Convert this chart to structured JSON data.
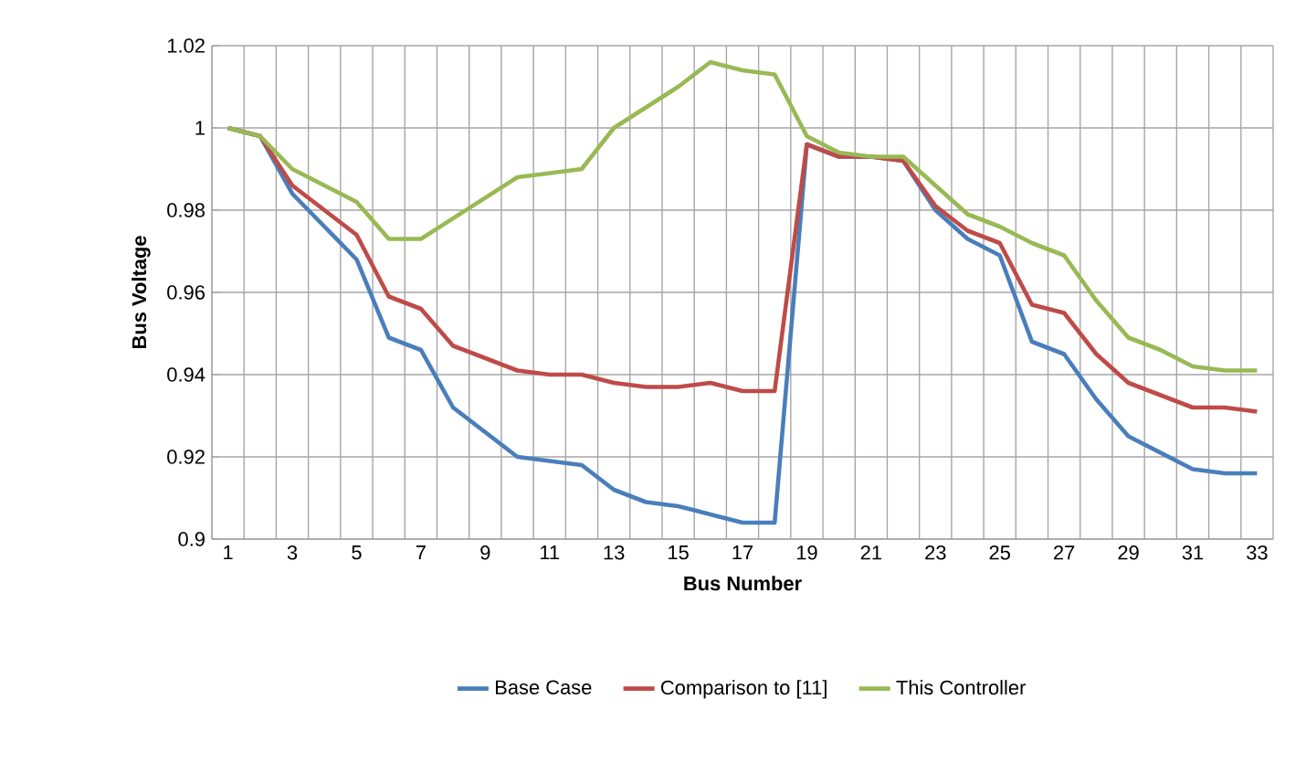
{
  "chart_data": {
    "type": "line",
    "xlabel": "Bus Number",
    "ylabel": "Bus Voltage",
    "categories": [
      "1",
      null,
      "3",
      null,
      "5",
      null,
      "7",
      null,
      "9",
      null,
      "11",
      null,
      "13",
      null,
      "15",
      null,
      "17",
      null,
      "19",
      null,
      "21",
      null,
      "23",
      null,
      "25",
      null,
      "27",
      null,
      "29",
      null,
      "31",
      null,
      "33"
    ],
    "series": [
      {
        "name": "Base Case",
        "color": "#4a7ebb",
        "values": [
          1.0,
          0.998,
          0.984,
          0.976,
          0.968,
          0.949,
          0.946,
          0.932,
          0.926,
          0.92,
          0.919,
          0.918,
          0.912,
          0.909,
          0.908,
          0.906,
          0.904,
          0.904,
          0.996,
          0.993,
          0.993,
          0.992,
          0.98,
          0.973,
          0.969,
          0.948,
          0.945,
          0.934,
          0.925,
          0.921,
          0.917,
          0.916,
          0.916
        ]
      },
      {
        "name": "Comparison to [11]",
        "color": "#be4b48",
        "values": [
          1.0,
          0.998,
          0.986,
          0.98,
          0.974,
          0.959,
          0.956,
          0.947,
          0.944,
          0.941,
          0.94,
          0.94,
          0.938,
          0.937,
          0.937,
          0.938,
          0.936,
          0.936,
          0.996,
          0.993,
          0.993,
          0.992,
          0.981,
          0.975,
          0.972,
          0.957,
          0.955,
          0.945,
          0.938,
          0.935,
          0.932,
          0.932,
          0.931
        ]
      },
      {
        "name": "This Controller",
        "color": "#98b954",
        "values": [
          1.0,
          0.998,
          0.99,
          0.986,
          0.982,
          0.973,
          0.973,
          0.978,
          0.983,
          0.988,
          0.989,
          0.99,
          1.0,
          1.005,
          1.01,
          1.016,
          1.014,
          1.013,
          0.998,
          0.994,
          0.993,
          0.993,
          0.986,
          0.979,
          0.976,
          0.972,
          0.969,
          0.958,
          0.949,
          0.946,
          0.942,
          0.941,
          0.941
        ]
      }
    ],
    "ylim": [
      0.9,
      1.02
    ],
    "yticks": [
      0.9,
      0.92,
      0.94,
      0.96,
      0.98,
      1,
      1.02
    ],
    "grid": true,
    "legend": "bottom",
    "marker": "none",
    "line_style": "solid"
  }
}
